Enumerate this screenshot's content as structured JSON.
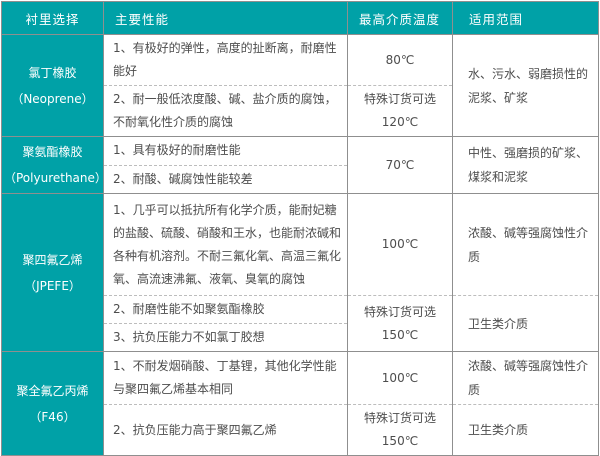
{
  "colors": {
    "accent_teal": "#00a1a7",
    "solid_border": "#8f8f8f",
    "dashed_border": "#bdbdbd",
    "body_text": "#4d4d4d",
    "header_text": "#ffffff"
  },
  "header": {
    "col1": "衬里选择",
    "col2": "主要性能",
    "col3": "最高介质温度",
    "col4": "适用范围"
  },
  "groups": [
    {
      "name": "氯丁橡胶",
      "code": "（Neoprene）",
      "perf1": "1、有极好的弹性，高度的扯断离，耐磨性能好",
      "perf2": "2、耐一般低浓度酸、碱、盐介质的腐蚀，不耐氧化性介质的腐蚀",
      "temp1": "80℃",
      "temp2a": "特殊订货可选",
      "temp2b": "120℃",
      "range": "水、污水、弱磨损性的泥浆、矿浆"
    },
    {
      "name": "聚氨酯橡胶",
      "code": "（Polyurethane）",
      "perf1": "1、具有极好的耐磨性能",
      "perf2": "2、耐酸、碱腐蚀性能较差",
      "temp": "70℃",
      "range": "中性、强磨损的矿浆、煤浆和泥浆"
    },
    {
      "name": "聚四氟乙烯",
      "code": "（JPEFE）",
      "perf1": "1、几乎可以抵抗所有化学介质，能耐妃糖的盐酸、硫酸、硝酸和王水，也能耐浓碱和各种有机溶剂。不耐三氟化氧、高温三氟化氧、高流速沸氟、液氧、臭氧的腐蚀",
      "perf2": "2、耐磨性能不如聚氨酯橡胶",
      "perf3": "3、抗负压能力不如氯丁胶想",
      "temp1": "100℃",
      "temp2a": "特殊订货可选",
      "temp2b": "150℃",
      "range1": "浓酸、碱等强腐蚀性介质",
      "range2": "卫生类介质"
    },
    {
      "name": "聚全氟乙丙烯",
      "code": "（F46）",
      "perf1": "1、不耐发烟硝酸、丁基锂，其他化学性能与聚四氟乙烯基本相同",
      "perf2": "2、抗负压能力高于聚四氟乙烯",
      "temp1": "100℃",
      "temp2a": "特殊订货可选",
      "temp2b": "150℃",
      "range1": "浓酸、碱等强腐蚀性介质",
      "range2": "卫生类介质"
    }
  ]
}
